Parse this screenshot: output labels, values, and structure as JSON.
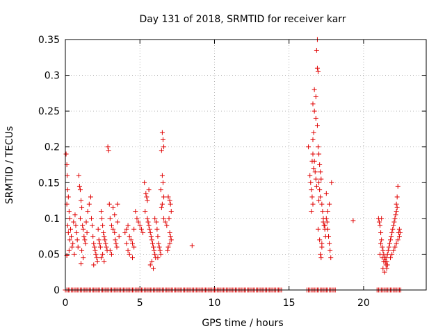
{
  "chart_data": {
    "type": "scatter",
    "title": "Day 131 of 2018, SRMTID for receiver karr",
    "xlabel": "GPS time / hours",
    "ylabel": "SRMTID / TECUs",
    "xlim": [
      0,
      24.2
    ],
    "ylim": [
      0,
      0.35
    ],
    "xticks": [
      0,
      5,
      10,
      15,
      20
    ],
    "xtick_labels": [
      "0",
      "5",
      "10",
      "15",
      "20"
    ],
    "yticks": [
      0,
      0.05,
      0.1,
      0.15,
      0.2,
      0.25,
      0.3,
      0.35
    ],
    "ytick_labels": [
      "0",
      "0.05",
      "0.1",
      "0.15",
      "0.2",
      "0.25",
      "0.3",
      "0.35"
    ],
    "grid": true,
    "marker": "+",
    "color": "#e00000",
    "series": [
      {
        "name": "SRMTID",
        "points": [
          [
            0.05,
            0.19
          ],
          [
            0.1,
            0.175
          ],
          [
            0.12,
            0.16
          ],
          [
            0.15,
            0.14
          ],
          [
            0.2,
            0.13
          ],
          [
            0.1,
            0.12
          ],
          [
            0.25,
            0.11
          ],
          [
            0.3,
            0.1
          ],
          [
            0.15,
            0.09
          ],
          [
            0.35,
            0.085
          ],
          [
            0.2,
            0.08
          ],
          [
            0.4,
            0.075
          ],
          [
            0.3,
            0.07
          ],
          [
            0.5,
            0.065
          ],
          [
            0.45,
            0.06
          ],
          [
            0.25,
            0.055
          ],
          [
            0.6,
            0.05
          ],
          [
            0.1,
            0.048
          ],
          [
            0.55,
            0.095
          ],
          [
            0.7,
            0.09
          ],
          [
            0.65,
            0.105
          ],
          [
            0.75,
            0.08
          ],
          [
            0.8,
            0.07
          ],
          [
            0.85,
            0.06
          ],
          [
            0.9,
            0.16
          ],
          [
            0.95,
            0.145
          ],
          [
            1.0,
            0.14
          ],
          [
            1.05,
            0.125
          ],
          [
            1.1,
            0.115
          ],
          [
            1.0,
            0.1
          ],
          [
            1.15,
            0.09
          ],
          [
            1.2,
            0.085
          ],
          [
            1.25,
            0.075
          ],
          [
            1.3,
            0.07
          ],
          [
            1.35,
            0.065
          ],
          [
            1.1,
            0.055
          ],
          [
            1.2,
            0.045
          ],
          [
            1.05,
            0.037
          ],
          [
            1.4,
            0.095
          ],
          [
            1.45,
            0.08
          ],
          [
            1.5,
            0.11
          ],
          [
            1.6,
            0.12
          ],
          [
            1.7,
            0.13
          ],
          [
            1.75,
            0.1
          ],
          [
            1.8,
            0.09
          ],
          [
            1.85,
            0.075
          ],
          [
            1.9,
            0.065
          ],
          [
            1.95,
            0.06
          ],
          [
            2.0,
            0.055
          ],
          [
            2.05,
            0.05
          ],
          [
            2.1,
            0.045
          ],
          [
            2.15,
            0.04
          ],
          [
            1.9,
            0.035
          ],
          [
            2.2,
            0.085
          ],
          [
            2.25,
            0.07
          ],
          [
            2.3,
            0.065
          ],
          [
            2.35,
            0.06
          ],
          [
            2.4,
            0.11
          ],
          [
            2.45,
            0.1
          ],
          [
            2.5,
            0.09
          ],
          [
            2.55,
            0.08
          ],
          [
            2.6,
            0.075
          ],
          [
            2.65,
            0.07
          ],
          [
            2.7,
            0.065
          ],
          [
            2.75,
            0.06
          ],
          [
            2.8,
            0.055
          ],
          [
            2.5,
            0.05
          ],
          [
            2.4,
            0.045
          ],
          [
            2.6,
            0.04
          ],
          [
            2.85,
            0.2
          ],
          [
            2.9,
            0.195
          ],
          [
            2.95,
            0.12
          ],
          [
            3.0,
            0.1
          ],
          [
            3.1,
            0.09
          ],
          [
            3.2,
            0.085
          ],
          [
            3.3,
            0.08
          ],
          [
            3.35,
            0.07
          ],
          [
            3.4,
            0.065
          ],
          [
            3.45,
            0.06
          ],
          [
            3.5,
            0.12
          ],
          [
            3.2,
            0.115
          ],
          [
            3.3,
            0.105
          ],
          [
            3.5,
            0.095
          ],
          [
            3.6,
            0.075
          ],
          [
            3.1,
            0.05
          ],
          [
            3.0,
            0.055
          ],
          [
            4.0,
            0.08
          ],
          [
            4.1,
            0.085
          ],
          [
            4.2,
            0.09
          ],
          [
            4.3,
            0.075
          ],
          [
            4.4,
            0.07
          ],
          [
            4.5,
            0.065
          ],
          [
            4.6,
            0.06
          ],
          [
            4.7,
            0.11
          ],
          [
            4.8,
            0.1
          ],
          [
            4.9,
            0.095
          ],
          [
            5.0,
            0.09
          ],
          [
            5.1,
            0.085
          ],
          [
            5.2,
            0.08
          ],
          [
            4.2,
            0.055
          ],
          [
            4.3,
            0.05
          ],
          [
            4.5,
            0.045
          ],
          [
            4.1,
            0.065
          ],
          [
            4.6,
            0.085
          ],
          [
            5.3,
            0.15
          ],
          [
            5.4,
            0.135
          ],
          [
            5.45,
            0.13
          ],
          [
            5.5,
            0.125
          ],
          [
            5.35,
            0.11
          ],
          [
            5.5,
            0.1
          ],
          [
            5.55,
            0.095
          ],
          [
            5.6,
            0.09
          ],
          [
            5.65,
            0.085
          ],
          [
            5.7,
            0.08
          ],
          [
            5.75,
            0.075
          ],
          [
            5.8,
            0.07
          ],
          [
            5.85,
            0.065
          ],
          [
            5.9,
            0.06
          ],
          [
            5.95,
            0.055
          ],
          [
            6.0,
            0.05
          ],
          [
            6.05,
            0.045
          ],
          [
            5.8,
            0.04
          ],
          [
            5.7,
            0.035
          ],
          [
            5.9,
            0.03
          ],
          [
            6.0,
            0.1
          ],
          [
            6.1,
            0.095
          ],
          [
            6.15,
            0.085
          ],
          [
            6.2,
            0.075
          ],
          [
            6.25,
            0.065
          ],
          [
            6.3,
            0.06
          ],
          [
            6.35,
            0.055
          ],
          [
            6.4,
            0.05
          ],
          [
            6.2,
            0.045
          ],
          [
            5.6,
            0.14
          ],
          [
            6.5,
            0.22
          ],
          [
            6.55,
            0.21
          ],
          [
            6.6,
            0.2
          ],
          [
            6.45,
            0.195
          ],
          [
            6.5,
            0.16
          ],
          [
            6.55,
            0.15
          ],
          [
            6.4,
            0.14
          ],
          [
            6.6,
            0.13
          ],
          [
            6.5,
            0.12
          ],
          [
            6.45,
            0.115
          ],
          [
            6.6,
            0.1
          ],
          [
            6.7,
            0.095
          ],
          [
            6.8,
            0.09
          ],
          [
            6.9,
            0.13
          ],
          [
            7.0,
            0.125
          ],
          [
            7.05,
            0.12
          ],
          [
            7.1,
            0.11
          ],
          [
            6.95,
            0.1
          ],
          [
            7.0,
            0.08
          ],
          [
            7.05,
            0.075
          ],
          [
            7.1,
            0.07
          ],
          [
            7.0,
            0.065
          ],
          [
            6.9,
            0.06
          ],
          [
            6.85,
            0.055
          ],
          [
            8.5,
            0.062
          ],
          [
            16.3,
            0.2
          ],
          [
            16.4,
            0.16
          ],
          [
            16.45,
            0.15
          ],
          [
            16.5,
            0.14
          ],
          [
            16.55,
            0.13
          ],
          [
            16.6,
            0.12
          ],
          [
            16.5,
            0.11
          ],
          [
            16.65,
            0.17
          ],
          [
            16.6,
            0.19
          ],
          [
            16.55,
            0.18
          ],
          [
            16.6,
            0.21
          ],
          [
            16.65,
            0.22
          ],
          [
            16.7,
            0.25
          ],
          [
            16.6,
            0.26
          ],
          [
            16.7,
            0.28
          ],
          [
            16.8,
            0.27
          ],
          [
            16.9,
            0.35
          ],
          [
            16.85,
            0.335
          ],
          [
            16.9,
            0.31
          ],
          [
            16.95,
            0.305
          ],
          [
            16.8,
            0.24
          ],
          [
            16.9,
            0.23
          ],
          [
            16.95,
            0.2
          ],
          [
            17.0,
            0.19
          ],
          [
            17.05,
            0.175
          ],
          [
            17.1,
            0.165
          ],
          [
            17.15,
            0.155
          ],
          [
            17.0,
            0.15
          ],
          [
            17.05,
            0.14
          ],
          [
            17.1,
            0.13
          ],
          [
            17.2,
            0.12
          ],
          [
            17.25,
            0.11
          ],
          [
            17.3,
            0.1
          ],
          [
            17.35,
            0.09
          ],
          [
            17.4,
            0.085
          ],
          [
            17.45,
            0.075
          ],
          [
            17.2,
            0.065
          ],
          [
            17.1,
            0.05
          ],
          [
            17.15,
            0.045
          ],
          [
            17.5,
            0.1
          ],
          [
            17.55,
            0.095
          ],
          [
            17.6,
            0.085
          ],
          [
            17.65,
            0.075
          ],
          [
            17.7,
            0.065
          ],
          [
            17.75,
            0.055
          ],
          [
            17.8,
            0.045
          ],
          [
            17.85,
            0.15
          ],
          [
            17.7,
            0.12
          ],
          [
            17.6,
            0.11
          ],
          [
            17.5,
            0.135
          ],
          [
            16.7,
            0.18
          ],
          [
            16.75,
            0.165
          ],
          [
            16.8,
            0.155
          ],
          [
            16.85,
            0.145
          ],
          [
            17.0,
            0.125
          ],
          [
            17.3,
            0.095
          ],
          [
            17.4,
            0.09
          ],
          [
            16.95,
            0.085
          ],
          [
            17.05,
            0.07
          ],
          [
            17.2,
            0.06
          ],
          [
            19.3,
            0.097
          ],
          [
            21.0,
            0.1
          ],
          [
            21.05,
            0.095
          ],
          [
            21.1,
            0.09
          ],
          [
            21.15,
            0.08
          ],
          [
            21.2,
            0.07
          ],
          [
            21.25,
            0.06
          ],
          [
            21.3,
            0.055
          ],
          [
            21.35,
            0.05
          ],
          [
            21.4,
            0.045
          ],
          [
            21.45,
            0.04
          ],
          [
            21.5,
            0.035
          ],
          [
            21.55,
            0.03
          ],
          [
            21.4,
            0.025
          ],
          [
            21.3,
            0.03
          ],
          [
            21.35,
            0.04
          ],
          [
            21.25,
            0.045
          ],
          [
            21.6,
            0.05
          ],
          [
            21.65,
            0.055
          ],
          [
            21.7,
            0.06
          ],
          [
            21.75,
            0.065
          ],
          [
            21.8,
            0.07
          ],
          [
            21.85,
            0.075
          ],
          [
            21.9,
            0.08
          ],
          [
            21.95,
            0.085
          ],
          [
            22.0,
            0.09
          ],
          [
            22.05,
            0.095
          ],
          [
            22.1,
            0.1
          ],
          [
            22.15,
            0.105
          ],
          [
            22.2,
            0.11
          ],
          [
            22.25,
            0.115
          ],
          [
            22.2,
            0.12
          ],
          [
            22.25,
            0.13
          ],
          [
            22.3,
            0.145
          ],
          [
            22.35,
            0.08
          ],
          [
            22.4,
            0.075
          ],
          [
            22.3,
            0.07
          ],
          [
            22.2,
            0.065
          ],
          [
            22.1,
            0.06
          ],
          [
            22.0,
            0.055
          ],
          [
            21.9,
            0.05
          ],
          [
            21.8,
            0.045
          ],
          [
            21.2,
            0.1
          ],
          [
            21.15,
            0.065
          ],
          [
            21.1,
            0.05
          ],
          [
            21.5,
            0.045
          ],
          [
            21.55,
            0.04
          ],
          [
            21.6,
            0.035
          ],
          [
            22.4,
            0.085
          ],
          [
            22.45,
            0.08
          ]
        ],
        "zero_points_x": [
          0.0,
          0.1,
          0.2,
          0.3,
          0.4,
          0.5,
          0.6,
          0.7,
          0.8,
          0.9,
          1.0,
          1.1,
          1.2,
          1.3,
          1.4,
          1.5,
          1.6,
          1.7,
          1.8,
          1.9,
          2.0,
          2.1,
          2.2,
          2.3,
          2.4,
          2.5,
          2.6,
          2.7,
          2.8,
          2.9,
          3.0,
          3.1,
          3.2,
          3.3,
          3.4,
          3.5,
          3.6,
          3.7,
          3.8,
          3.9,
          4.0,
          4.1,
          4.2,
          4.3,
          4.4,
          4.5,
          4.6,
          4.7,
          4.8,
          4.9,
          5.0,
          5.1,
          5.2,
          5.3,
          5.4,
          5.5,
          5.6,
          5.7,
          5.8,
          5.9,
          6.0,
          6.1,
          6.2,
          6.3,
          6.4,
          6.5,
          6.6,
          6.7,
          6.8,
          6.9,
          7.0,
          7.1,
          7.2,
          7.3,
          7.4,
          7.5,
          7.6,
          7.7,
          7.8,
          7.9,
          8.0,
          8.1,
          8.2,
          8.3,
          8.4,
          8.5,
          8.6,
          8.7,
          8.8,
          8.9,
          9.0,
          9.1,
          9.2,
          9.3,
          9.4,
          9.5,
          9.6,
          9.7,
          9.8,
          9.9,
          10.0,
          10.1,
          10.2,
          10.3,
          10.4,
          10.5,
          10.6,
          10.7,
          10.8,
          10.9,
          11.0,
          11.1,
          11.2,
          11.3,
          11.4,
          11.5,
          11.6,
          11.7,
          11.8,
          11.9,
          12.0,
          12.1,
          12.2,
          12.3,
          12.4,
          12.5,
          12.6,
          12.7,
          12.8,
          12.9,
          13.0,
          13.1,
          13.2,
          13.3,
          13.4,
          13.5,
          13.6,
          13.7,
          13.8,
          13.9,
          14.0,
          14.1,
          14.2,
          14.3,
          14.4,
          14.5,
          16.2,
          16.3,
          16.4,
          16.5,
          16.6,
          16.7,
          16.8,
          16.9,
          17.0,
          17.1,
          17.2,
          17.3,
          17.4,
          17.5,
          17.6,
          17.7,
          17.8,
          17.9,
          18.0,
          18.1,
          20.9,
          21.0,
          21.1,
          21.2,
          21.3,
          21.4,
          21.5,
          21.6,
          21.7,
          21.8,
          21.9,
          22.0,
          22.1,
          22.2,
          22.3,
          22.4,
          22.5
        ]
      }
    ]
  }
}
